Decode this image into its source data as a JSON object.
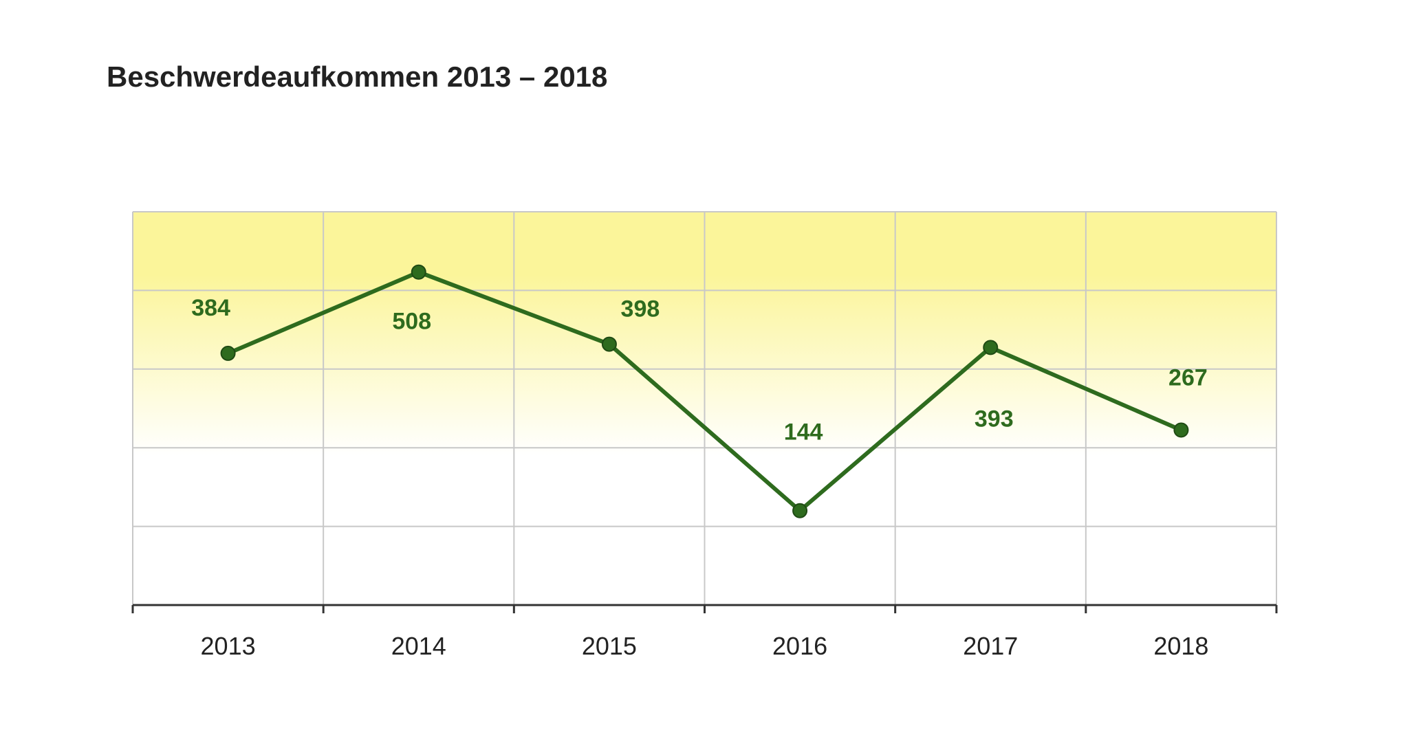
{
  "chart_data": {
    "type": "line",
    "title": "Beschwerdeaufkommen 2013 – 2018",
    "xlabel": "",
    "ylabel": "",
    "categories": [
      "2013",
      "2014",
      "2015",
      "2016",
      "2017",
      "2018"
    ],
    "series": [
      {
        "values": [
          384,
          508,
          398,
          144,
          393,
          267
        ],
        "color": "#2e6b1e"
      }
    ],
    "data_labels": [
      "384",
      "508",
      "398",
      "144",
      "393",
      "267"
    ],
    "ylim": [
      0,
      600
    ],
    "y_ticks_shown": false,
    "grid": true,
    "legend": "none",
    "background_gradient": [
      "#fbf59a",
      "#ffffff"
    ]
  }
}
